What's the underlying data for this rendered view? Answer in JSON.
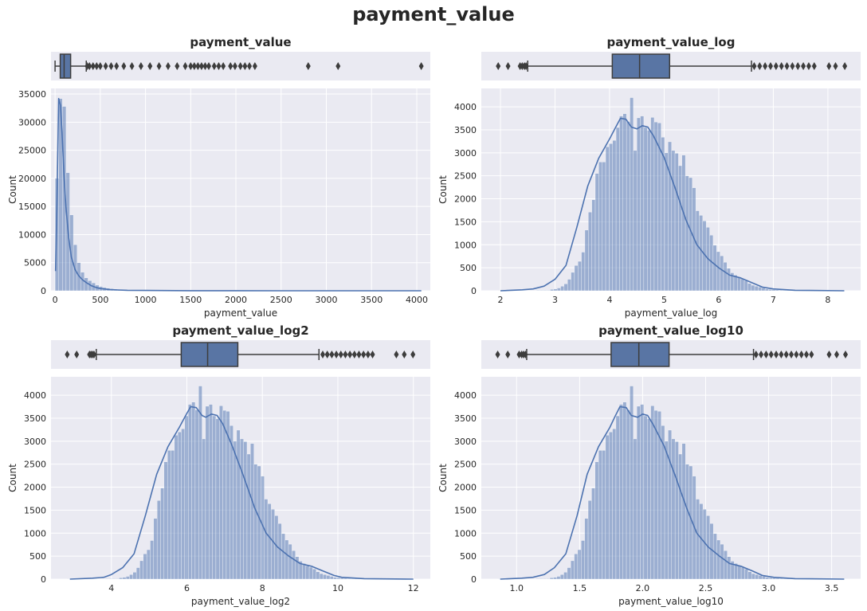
{
  "suptitle": "payment_value",
  "colors": {
    "axes_bg": "#eaeaf2",
    "grid": "#ffffff",
    "hist_fill": "#4c72b0",
    "kde_line": "#4c72b0",
    "box_fill": "#5975a4",
    "box_edge": "#3d3d3d"
  },
  "chart_data": [
    {
      "type": "histogram",
      "title": "payment_value",
      "xlabel": "payment_value",
      "ylabel": "Count",
      "xlim": [
        -45,
        4150
      ],
      "ylim": [
        0,
        36000
      ],
      "xticks": [
        0,
        500,
        1000,
        1500,
        2000,
        2500,
        3000,
        3500,
        4000
      ],
      "xtick_labels": [
        "0",
        "500",
        "1000",
        "1500",
        "2000",
        "2500",
        "3000",
        "3500",
        "4000"
      ],
      "yticks": [
        0,
        5000,
        10000,
        15000,
        20000,
        25000,
        30000,
        35000
      ],
      "ytick_labels": [
        "0",
        "5000",
        "10000",
        "15000",
        "20000",
        "25000",
        "30000",
        "35000"
      ],
      "grid": true,
      "bins": {
        "start": 0,
        "end": 4050,
        "count": 100
      },
      "counts": [
        20000,
        34200,
        32800,
        21000,
        13500,
        8200,
        5000,
        3300,
        2300,
        1800,
        1400,
        1000,
        760,
        580,
        450,
        360,
        290,
        240,
        200,
        160,
        130,
        110,
        95,
        80,
        70,
        60,
        50,
        45,
        40,
        35,
        30,
        28,
        26,
        24,
        22,
        20,
        18,
        16,
        15,
        14,
        13,
        12,
        11,
        10,
        9,
        9,
        8,
        8,
        7,
        7,
        6,
        6,
        5,
        5,
        5,
        5,
        4,
        4,
        4,
        4,
        3,
        3,
        3,
        3,
        3,
        3,
        2,
        2,
        2,
        2,
        2,
        2,
        2,
        2,
        1,
        1,
        1,
        1,
        1,
        1,
        1,
        1,
        1,
        1,
        1,
        1,
        1,
        1,
        1,
        1,
        1,
        1,
        1,
        1,
        1,
        1,
        1,
        1,
        1,
        1
      ],
      "kde": {
        "x": [
          5,
          20,
          40,
          60,
          80,
          100,
          120,
          150,
          180,
          220,
          260,
          300,
          350,
          400,
          450,
          500,
          600,
          700,
          800,
          1000,
          1500,
          2000,
          2500,
          3000,
          3500,
          4050
        ],
        "y": [
          3500,
          15000,
          34200,
          33000,
          27000,
          20000,
          15000,
          9500,
          6000,
          3800,
          2700,
          2000,
          1400,
          900,
          600,
          400,
          220,
          140,
          90,
          50,
          20,
          10,
          5,
          3,
          1,
          0
        ]
      },
      "box": {
        "whisker_low": 0,
        "q1": 57,
        "median": 100,
        "q3": 172,
        "whisker_high": 345,
        "outliers": [
          355,
          380,
          420,
          460,
          500,
          560,
          620,
          680,
          760,
          850,
          950,
          1050,
          1150,
          1250,
          1350,
          1440,
          1500,
          1540,
          1580,
          1620,
          1660,
          1700,
          1760,
          1810,
          1860,
          1940,
          1990,
          2050,
          2100,
          2150,
          2210,
          2800,
          3130,
          4050
        ]
      }
    },
    {
      "type": "histogram",
      "title": "payment_value_log",
      "xlabel": "payment_value_log",
      "ylabel": "Count",
      "xlim": [
        1.65,
        8.6
      ],
      "ylim": [
        0,
        4400
      ],
      "xticks": [
        2,
        3,
        4,
        5,
        6,
        7,
        8
      ],
      "xtick_labels": [
        "2",
        "3",
        "4",
        "5",
        "6",
        "7",
        "8"
      ],
      "yticks": [
        0,
        500,
        1000,
        1500,
        2000,
        2500,
        3000,
        3500,
        4000
      ],
      "ytick_labels": [
        "0",
        "500",
        "1000",
        "1500",
        "2000",
        "2500",
        "3000",
        "3500",
        "4000"
      ],
      "grid": true,
      "bins": {
        "start": 1.96,
        "end": 8.31,
        "count": 100
      },
      "counts": [
        5,
        5,
        5,
        5,
        5,
        5,
        5,
        5,
        5,
        5,
        5,
        10,
        10,
        10,
        10,
        30,
        40,
        60,
        100,
        150,
        250,
        400,
        550,
        640,
        840,
        1320,
        1710,
        1980,
        2550,
        2800,
        2800,
        3130,
        3200,
        3270,
        3550,
        3800,
        3850,
        3680,
        4200,
        3050,
        3760,
        3800,
        3550,
        3490,
        3770,
        3670,
        3650,
        3340,
        3000,
        3240,
        3050,
        2990,
        2720,
        2950,
        2500,
        2460,
        2240,
        1740,
        1640,
        1520,
        1380,
        1210,
        990,
        850,
        760,
        620,
        490,
        390,
        340,
        290,
        260,
        220,
        160,
        120,
        100,
        80,
        60,
        40,
        30,
        25,
        20,
        15,
        10,
        10,
        10,
        8,
        6,
        5,
        5,
        5,
        3,
        3,
        3,
        2,
        2,
        2,
        1,
        1,
        1,
        1
      ],
      "kde": {
        "x": [
          2.0,
          2.4,
          2.6,
          2.8,
          3.0,
          3.2,
          3.4,
          3.6,
          3.8,
          4.0,
          4.1,
          4.2,
          4.3,
          4.4,
          4.5,
          4.6,
          4.7,
          4.8,
          5.0,
          5.2,
          5.4,
          5.6,
          5.8,
          6.0,
          6.2,
          6.4,
          6.6,
          6.8,
          7.0,
          7.4,
          8.3
        ],
        "y": [
          0,
          20,
          40,
          100,
          250,
          550,
          1380,
          2280,
          2880,
          3300,
          3530,
          3750,
          3730,
          3560,
          3520,
          3590,
          3560,
          3380,
          2900,
          2240,
          1540,
          1000,
          700,
          500,
          340,
          280,
          180,
          80,
          40,
          10,
          0
        ]
      },
      "box": {
        "whisker_low": 2.5,
        "q1": 4.05,
        "median": 4.55,
        "q3": 5.1,
        "whisker_high": 6.6,
        "outliers": [
          1.96,
          2.14,
          2.36,
          2.4,
          2.44,
          2.47,
          6.65,
          6.75,
          6.85,
          6.95,
          7.05,
          7.15,
          7.25,
          7.35,
          7.45,
          7.55,
          7.65,
          7.75,
          8.02,
          8.14,
          8.31
        ]
      }
    },
    {
      "type": "histogram",
      "title": "payment_value_log2",
      "xlabel": "payment_value_log2",
      "ylabel": "Count",
      "xlim": [
        2.4,
        12.45
      ],
      "ylim": [
        0,
        4400
      ],
      "xticks": [
        4,
        6,
        8,
        10,
        12
      ],
      "xtick_labels": [
        "4",
        "6",
        "8",
        "10",
        "12"
      ],
      "yticks": [
        0,
        500,
        1000,
        1500,
        2000,
        2500,
        3000,
        3500,
        4000
      ],
      "ytick_labels": [
        "0",
        "500",
        "1000",
        "1500",
        "2000",
        "2500",
        "3000",
        "3500",
        "4000"
      ],
      "grid": true,
      "bins": {
        "start": 2.83,
        "end": 11.99,
        "count": 100
      },
      "counts": [
        5,
        5,
        5,
        5,
        5,
        5,
        5,
        5,
        5,
        5,
        5,
        10,
        10,
        10,
        10,
        30,
        40,
        60,
        100,
        150,
        250,
        400,
        550,
        640,
        840,
        1320,
        1710,
        1980,
        2550,
        2800,
        2800,
        3130,
        3200,
        3270,
        3550,
        3800,
        3850,
        3680,
        4200,
        3050,
        3760,
        3800,
        3550,
        3490,
        3770,
        3670,
        3650,
        3340,
        3000,
        3240,
        3050,
        2990,
        2720,
        2950,
        2500,
        2460,
        2240,
        1740,
        1640,
        1520,
        1380,
        1210,
        990,
        850,
        760,
        620,
        490,
        390,
        340,
        290,
        260,
        220,
        160,
        120,
        100,
        80,
        60,
        40,
        30,
        25,
        20,
        15,
        10,
        10,
        10,
        8,
        6,
        5,
        5,
        5,
        3,
        3,
        3,
        2,
        2,
        2,
        1,
        1,
        1,
        1
      ],
      "kde": {
        "x": [
          2.9,
          3.5,
          3.8,
          4.0,
          4.3,
          4.6,
          4.9,
          5.2,
          5.5,
          5.8,
          5.95,
          6.1,
          6.25,
          6.4,
          6.5,
          6.65,
          6.8,
          6.95,
          7.2,
          7.5,
          7.8,
          8.1,
          8.4,
          8.7,
          9.0,
          9.3,
          9.6,
          9.9,
          10.1,
          10.7,
          12.0
        ],
        "y": [
          0,
          20,
          40,
          100,
          250,
          550,
          1380,
          2280,
          2880,
          3300,
          3530,
          3750,
          3730,
          3560,
          3520,
          3590,
          3560,
          3380,
          2900,
          2240,
          1540,
          1000,
          700,
          500,
          340,
          280,
          180,
          80,
          40,
          10,
          0
        ]
      },
      "box": {
        "whisker_low": 3.6,
        "q1": 5.85,
        "median": 6.55,
        "q3": 7.35,
        "whisker_high": 9.5,
        "outliers": [
          2.83,
          3.08,
          3.42,
          3.46,
          3.5,
          3.54,
          9.6,
          9.72,
          9.84,
          9.96,
          10.08,
          10.2,
          10.32,
          10.44,
          10.56,
          10.68,
          10.8,
          10.92,
          11.55,
          11.76,
          11.99
        ]
      }
    },
    {
      "type": "histogram",
      "title": "payment_value_log10",
      "xlabel": "payment_value_log10",
      "ylabel": "Count",
      "xlim": [
        0.72,
        3.73
      ],
      "ylim": [
        0,
        4400
      ],
      "xticks": [
        1.0,
        1.5,
        2.0,
        2.5,
        3.0,
        3.5
      ],
      "xtick_labels": [
        "1.0",
        "1.5",
        "2.0",
        "2.5",
        "3.0",
        "3.5"
      ],
      "yticks": [
        0,
        500,
        1000,
        1500,
        2000,
        2500,
        3000,
        3500,
        4000
      ],
      "ytick_labels": [
        "0",
        "500",
        "1000",
        "1500",
        "2000",
        "2500",
        "3000",
        "3500",
        "4000"
      ],
      "grid": true,
      "bins": {
        "start": 0.85,
        "end": 3.61,
        "count": 100
      },
      "counts": [
        5,
        5,
        5,
        5,
        5,
        5,
        5,
        5,
        5,
        5,
        5,
        10,
        10,
        10,
        10,
        30,
        40,
        60,
        100,
        150,
        250,
        400,
        550,
        640,
        840,
        1320,
        1710,
        1980,
        2550,
        2800,
        2800,
        3130,
        3200,
        3270,
        3550,
        3800,
        3850,
        3680,
        4200,
        3050,
        3760,
        3800,
        3550,
        3490,
        3770,
        3670,
        3650,
        3340,
        3000,
        3240,
        3050,
        2990,
        2720,
        2950,
        2500,
        2460,
        2240,
        1740,
        1640,
        1520,
        1380,
        1210,
        990,
        850,
        760,
        620,
        490,
        390,
        340,
        290,
        260,
        220,
        160,
        120,
        100,
        80,
        60,
        40,
        30,
        25,
        20,
        15,
        10,
        10,
        10,
        8,
        6,
        5,
        5,
        5,
        3,
        3,
        3,
        2,
        2,
        2,
        1,
        1,
        1,
        1
      ],
      "kde": {
        "x": [
          0.87,
          1.04,
          1.13,
          1.22,
          1.3,
          1.39,
          1.48,
          1.56,
          1.65,
          1.74,
          1.78,
          1.82,
          1.87,
          1.91,
          1.96,
          2.0,
          2.04,
          2.08,
          2.17,
          2.26,
          2.35,
          2.43,
          2.52,
          2.61,
          2.69,
          2.78,
          2.87,
          2.95,
          3.04,
          3.21,
          3.6
        ],
        "y": [
          0,
          20,
          40,
          100,
          250,
          550,
          1380,
          2280,
          2880,
          3300,
          3530,
          3750,
          3730,
          3560,
          3520,
          3590,
          3560,
          3380,
          2900,
          2240,
          1540,
          1000,
          700,
          500,
          340,
          280,
          180,
          80,
          40,
          10,
          0
        ]
      },
      "box": {
        "whisker_low": 1.08,
        "q1": 1.75,
        "median": 1.97,
        "q3": 2.21,
        "whisker_high": 2.88,
        "outliers": [
          0.85,
          0.93,
          1.02,
          1.04,
          1.055,
          1.07,
          2.9,
          2.94,
          2.98,
          3.02,
          3.06,
          3.1,
          3.14,
          3.18,
          3.22,
          3.26,
          3.3,
          3.34,
          3.48,
          3.54,
          3.61
        ]
      }
    }
  ]
}
